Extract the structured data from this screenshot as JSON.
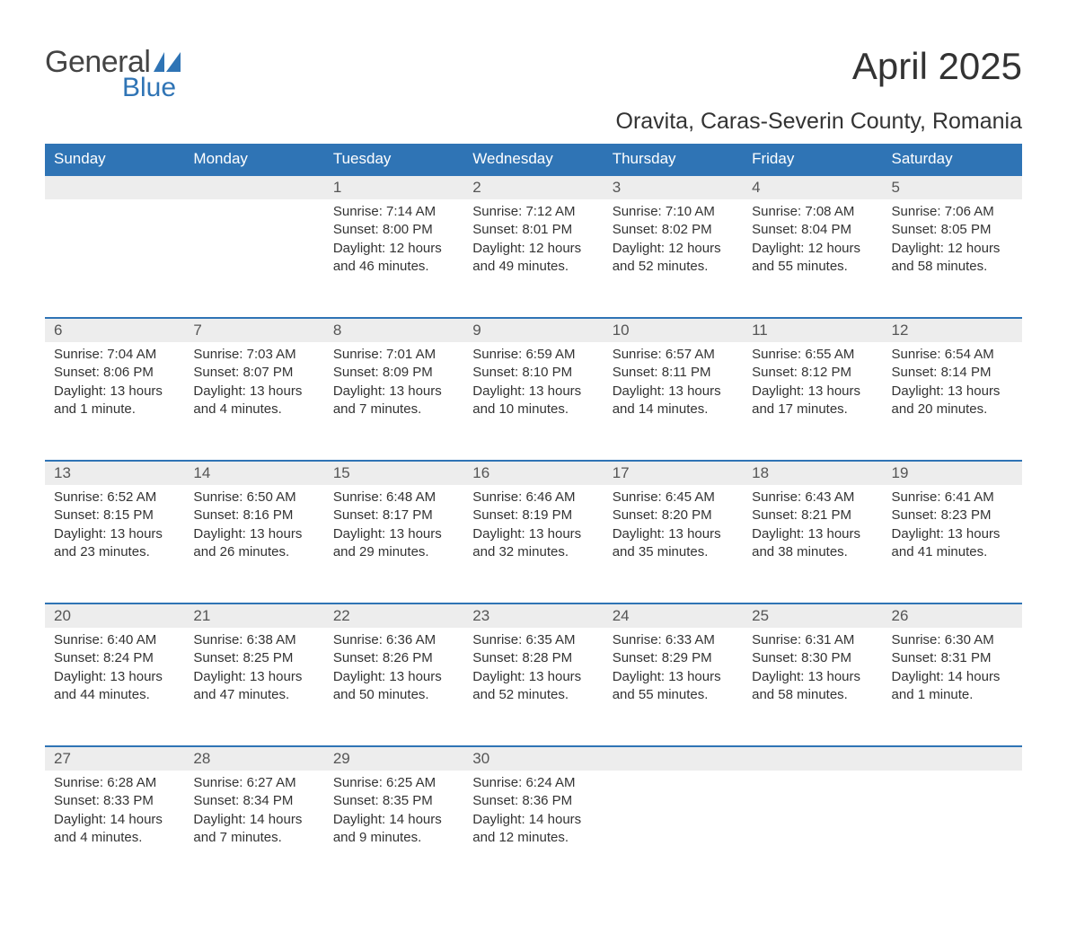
{
  "logo": {
    "word1": "General",
    "word2": "Blue"
  },
  "title": "April 2025",
  "location": "Oravita, Caras-Severin County, Romania",
  "colors": {
    "header_bg": "#2f74b5",
    "header_text": "#ffffff",
    "daynum_bg": "#ededed",
    "row_border": "#2f74b5",
    "body_text": "#333333",
    "logo_gray": "#444444",
    "logo_blue": "#2f74b5"
  },
  "typography": {
    "title_fontsize": 42,
    "location_fontsize": 25,
    "header_fontsize": 17,
    "daynum_fontsize": 17,
    "cell_fontsize": 15
  },
  "layout": {
    "columns": 7,
    "weeks": 5
  },
  "weekdays": [
    "Sunday",
    "Monday",
    "Tuesday",
    "Wednesday",
    "Thursday",
    "Friday",
    "Saturday"
  ],
  "weeks": [
    [
      null,
      null,
      {
        "n": "1",
        "sunrise": "7:14 AM",
        "sunset": "8:00 PM",
        "daylight": "12 hours and 46 minutes."
      },
      {
        "n": "2",
        "sunrise": "7:12 AM",
        "sunset": "8:01 PM",
        "daylight": "12 hours and 49 minutes."
      },
      {
        "n": "3",
        "sunrise": "7:10 AM",
        "sunset": "8:02 PM",
        "daylight": "12 hours and 52 minutes."
      },
      {
        "n": "4",
        "sunrise": "7:08 AM",
        "sunset": "8:04 PM",
        "daylight": "12 hours and 55 minutes."
      },
      {
        "n": "5",
        "sunrise": "7:06 AM",
        "sunset": "8:05 PM",
        "daylight": "12 hours and 58 minutes."
      }
    ],
    [
      {
        "n": "6",
        "sunrise": "7:04 AM",
        "sunset": "8:06 PM",
        "daylight": "13 hours and 1 minute."
      },
      {
        "n": "7",
        "sunrise": "7:03 AM",
        "sunset": "8:07 PM",
        "daylight": "13 hours and 4 minutes."
      },
      {
        "n": "8",
        "sunrise": "7:01 AM",
        "sunset": "8:09 PM",
        "daylight": "13 hours and 7 minutes."
      },
      {
        "n": "9",
        "sunrise": "6:59 AM",
        "sunset": "8:10 PM",
        "daylight": "13 hours and 10 minutes."
      },
      {
        "n": "10",
        "sunrise": "6:57 AM",
        "sunset": "8:11 PM",
        "daylight": "13 hours and 14 minutes."
      },
      {
        "n": "11",
        "sunrise": "6:55 AM",
        "sunset": "8:12 PM",
        "daylight": "13 hours and 17 minutes."
      },
      {
        "n": "12",
        "sunrise": "6:54 AM",
        "sunset": "8:14 PM",
        "daylight": "13 hours and 20 minutes."
      }
    ],
    [
      {
        "n": "13",
        "sunrise": "6:52 AM",
        "sunset": "8:15 PM",
        "daylight": "13 hours and 23 minutes."
      },
      {
        "n": "14",
        "sunrise": "6:50 AM",
        "sunset": "8:16 PM",
        "daylight": "13 hours and 26 minutes."
      },
      {
        "n": "15",
        "sunrise": "6:48 AM",
        "sunset": "8:17 PM",
        "daylight": "13 hours and 29 minutes."
      },
      {
        "n": "16",
        "sunrise": "6:46 AM",
        "sunset": "8:19 PM",
        "daylight": "13 hours and 32 minutes."
      },
      {
        "n": "17",
        "sunrise": "6:45 AM",
        "sunset": "8:20 PM",
        "daylight": "13 hours and 35 minutes."
      },
      {
        "n": "18",
        "sunrise": "6:43 AM",
        "sunset": "8:21 PM",
        "daylight": "13 hours and 38 minutes."
      },
      {
        "n": "19",
        "sunrise": "6:41 AM",
        "sunset": "8:23 PM",
        "daylight": "13 hours and 41 minutes."
      }
    ],
    [
      {
        "n": "20",
        "sunrise": "6:40 AM",
        "sunset": "8:24 PM",
        "daylight": "13 hours and 44 minutes."
      },
      {
        "n": "21",
        "sunrise": "6:38 AM",
        "sunset": "8:25 PM",
        "daylight": "13 hours and 47 minutes."
      },
      {
        "n": "22",
        "sunrise": "6:36 AM",
        "sunset": "8:26 PM",
        "daylight": "13 hours and 50 minutes."
      },
      {
        "n": "23",
        "sunrise": "6:35 AM",
        "sunset": "8:28 PM",
        "daylight": "13 hours and 52 minutes."
      },
      {
        "n": "24",
        "sunrise": "6:33 AM",
        "sunset": "8:29 PM",
        "daylight": "13 hours and 55 minutes."
      },
      {
        "n": "25",
        "sunrise": "6:31 AM",
        "sunset": "8:30 PM",
        "daylight": "13 hours and 58 minutes."
      },
      {
        "n": "26",
        "sunrise": "6:30 AM",
        "sunset": "8:31 PM",
        "daylight": "14 hours and 1 minute."
      }
    ],
    [
      {
        "n": "27",
        "sunrise": "6:28 AM",
        "sunset": "8:33 PM",
        "daylight": "14 hours and 4 minutes."
      },
      {
        "n": "28",
        "sunrise": "6:27 AM",
        "sunset": "8:34 PM",
        "daylight": "14 hours and 7 minutes."
      },
      {
        "n": "29",
        "sunrise": "6:25 AM",
        "sunset": "8:35 PM",
        "daylight": "14 hours and 9 minutes."
      },
      {
        "n": "30",
        "sunrise": "6:24 AM",
        "sunset": "8:36 PM",
        "daylight": "14 hours and 12 minutes."
      },
      null,
      null,
      null
    ]
  ],
  "labels": {
    "sunrise": "Sunrise:",
    "sunset": "Sunset:",
    "daylight": "Daylight:"
  }
}
